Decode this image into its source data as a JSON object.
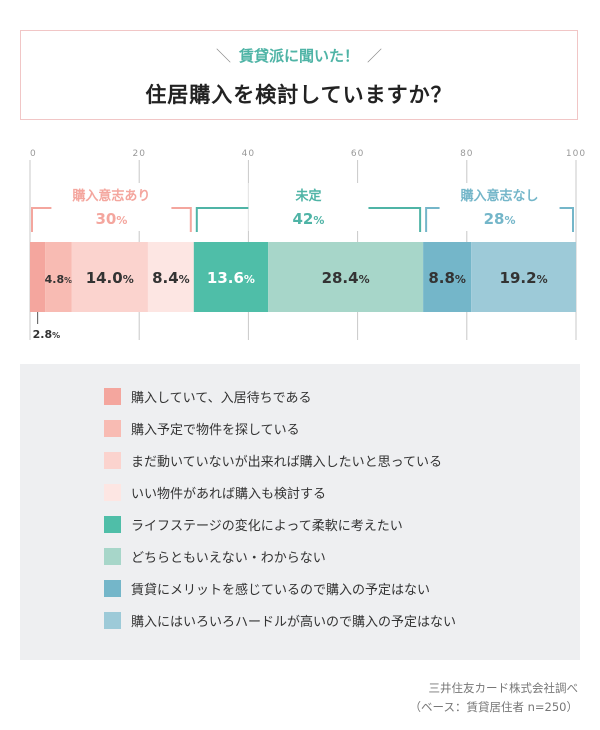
{
  "header": {
    "subtitle": "賃貸派に聞いた！",
    "title": "住居購入を検討していますか？"
  },
  "chart_data": {
    "type": "bar",
    "orientation": "horizontal-stacked-100",
    "xlim": [
      0,
      100
    ],
    "ticks": [
      "0",
      "20",
      "40",
      "60",
      "80",
      "100"
    ],
    "groups": [
      {
        "label": "購入意志あり",
        "value": "30",
        "color": "#f4a69e"
      },
      {
        "label": "未定",
        "value": "42",
        "color": "#4fb4a6"
      },
      {
        "label": "購入意志なし",
        "value": "28",
        "color": "#74b6c9"
      }
    ],
    "segments": [
      {
        "name": "購入していて、入居待ちである",
        "value": 2.8,
        "label": "2.8",
        "color": "#f4a69e",
        "text_color": "#333333"
      },
      {
        "name": "購入予定で物件を探している",
        "value": 4.8,
        "label": "4.8",
        "color": "#f8bbb3",
        "text_color": "#333333"
      },
      {
        "name": "まだ動いていないが出来れば購入したいと思っている",
        "value": 14.0,
        "label": "14.0",
        "color": "#fbd3ce",
        "text_color": "#333333"
      },
      {
        "name": "いい物件があれば購入も検討する",
        "value": 8.4,
        "label": "8.4",
        "color": "#fde6e3",
        "text_color": "#333333"
      },
      {
        "name": "ライフステージの変化によって柔軟に考えたい",
        "value": 13.6,
        "label": "13.6",
        "color": "#4fbea8",
        "text_color": "#ffffff"
      },
      {
        "name": "どちらともいえない・わからない",
        "value": 28.4,
        "label": "28.4",
        "color": "#a7d6c9",
        "text_color": "#333333"
      },
      {
        "name": "賃貸にメリットを感じているので購入の予定はない",
        "value": 8.8,
        "label": "8.8",
        "color": "#74b6c9",
        "text_color": "#333333"
      },
      {
        "name": "購入にはいろいろハードルが高いので購入の予定はない",
        "value": 19.2,
        "label": "19.2",
        "color": "#9dcad8",
        "text_color": "#333333"
      }
    ],
    "unit": "%"
  },
  "source": {
    "line1": "三井住友カード株式会社調べ",
    "line2": "（ベース：賃貸居住者 n=250）"
  }
}
